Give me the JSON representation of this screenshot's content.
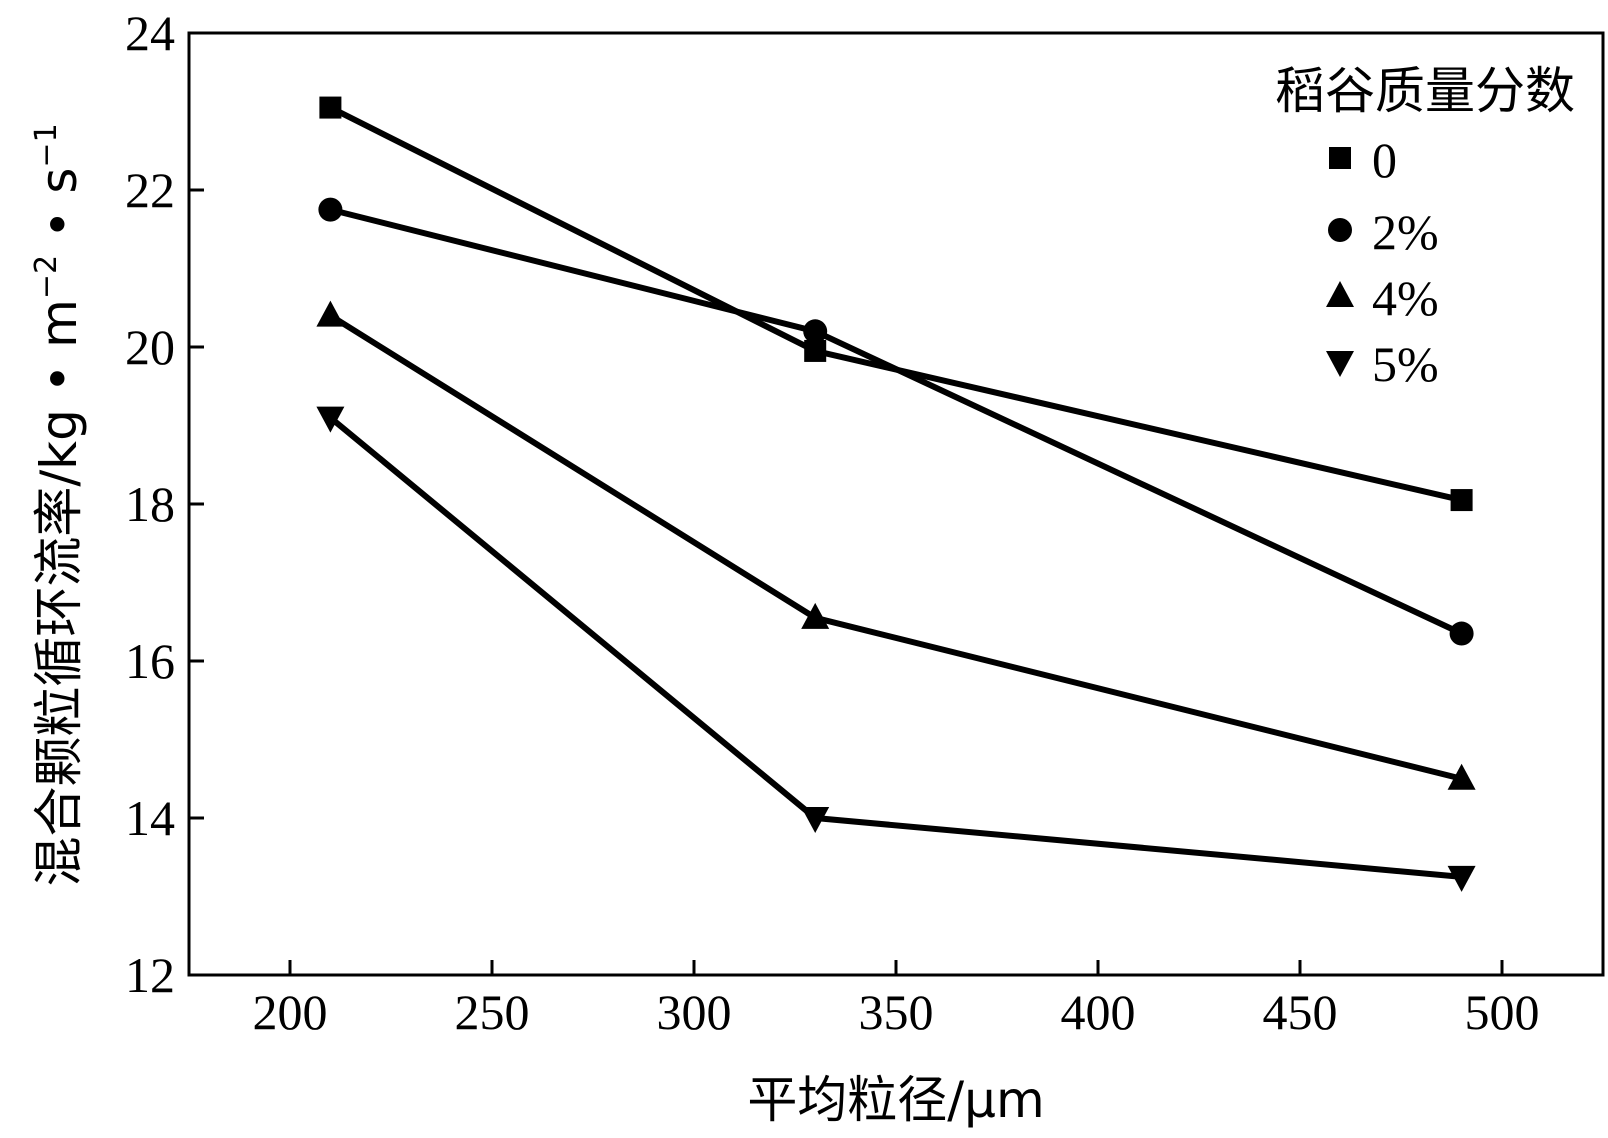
{
  "chart_data": {
    "type": "line",
    "xlabel": "平均粒径/μm",
    "ylabel": {
      "prefix": "混合颗粒循环流率/kg • m",
      "exp1": "−2",
      "middle": " • s",
      "exp2": "−1"
    },
    "xlim": [
      175,
      525
    ],
    "ylim": [
      12,
      24
    ],
    "xticks": [
      200,
      250,
      300,
      350,
      400,
      450,
      500
    ],
    "yticks": [
      12,
      14,
      16,
      18,
      20,
      22,
      24
    ],
    "grid": false,
    "legend": {
      "title": "稻谷质量分数",
      "placement": "top-right"
    },
    "x": [
      210,
      330,
      490
    ],
    "series": [
      {
        "name": "0",
        "marker": "square",
        "values": [
          23.05,
          19.95,
          18.05
        ]
      },
      {
        "name": "2%",
        "marker": "circle",
        "values": [
          21.75,
          20.2,
          16.35
        ]
      },
      {
        "name": "4%",
        "marker": "triangle-up",
        "values": [
          20.4,
          16.55,
          14.5
        ]
      },
      {
        "name": "5%",
        "marker": "triangle-down",
        "values": [
          19.1,
          14.0,
          13.25
        ]
      }
    ]
  }
}
